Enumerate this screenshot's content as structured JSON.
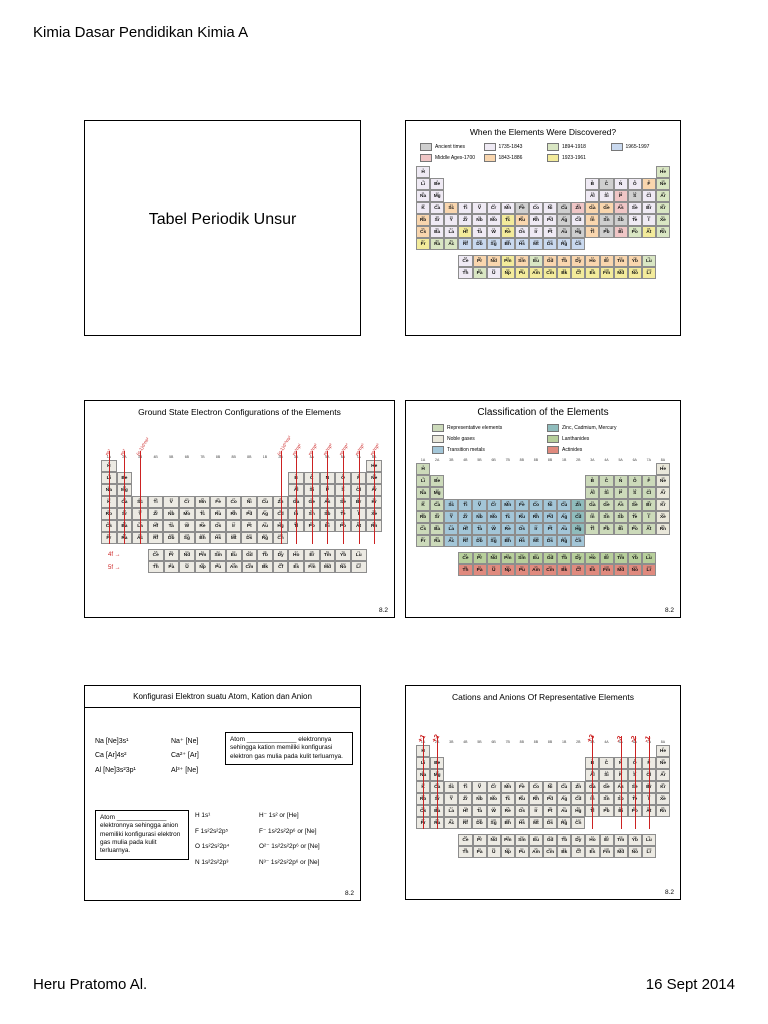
{
  "page": {
    "header": "Kimia Dasar Pendidikan Kimia A",
    "footer_left": "Heru Pratomo Al.",
    "footer_right": "16 Sept 2014",
    "colors": {
      "annotation_red": "#cc2222"
    }
  },
  "slide1": {
    "title": "Tabel Periodik Unsur"
  },
  "slide2": {
    "title": "When the Elements Were Discovered?",
    "legend": [
      {
        "label": "Ancient times",
        "color": "#cfcfcf"
      },
      {
        "label": "1735-1843",
        "color": "#efeaf4"
      },
      {
        "label": "1894-1918",
        "color": "#d9e6c3"
      },
      {
        "label": "1965-1997",
        "color": "#c9d9ef"
      },
      {
        "label": "Middle Ages-1700",
        "color": "#f0c6c6"
      },
      {
        "label": "1843-1886",
        "color": "#f9d6ae"
      },
      {
        "label": "1923-1961",
        "color": "#f3eb9b"
      }
    ]
  },
  "slide3": {
    "title": "Ground State Electron Configurations of the Elements",
    "figure_number": "8.2",
    "f_labels": [
      "4f",
      "5f"
    ],
    "annotations": [
      {
        "col": 1,
        "label": "ns¹"
      },
      {
        "col": 2,
        "label": "ns²"
      },
      {
        "col": 3,
        "label": "(n-1)d¹ns²"
      },
      {
        "col": 12,
        "label": "(n-1)d¹⁰ns²"
      },
      {
        "col": 13,
        "label": "ns²np¹"
      },
      {
        "col": 14,
        "label": "ns²np²"
      },
      {
        "col": 15,
        "label": "ns²np³"
      },
      {
        "col": 16,
        "label": "ns²np⁴"
      },
      {
        "col": 17,
        "label": "ns²np⁵"
      },
      {
        "col": 18,
        "label": "ns²np⁶"
      }
    ]
  },
  "slide4": {
    "title": "Classification of the Elements",
    "figure_number": "8.2",
    "legend": [
      {
        "label": "Representative elements",
        "color": "#ccdaba"
      },
      {
        "label": "Noble gases",
        "color": "#e9e7da"
      },
      {
        "label": "Transition metals",
        "color": "#a3c6d8"
      },
      {
        "label": "Zinc, Cadmium, Mercury",
        "color": "#8fbcbc"
      },
      {
        "label": "Lanthanides",
        "color": "#b7cf9b"
      },
      {
        "label": "Actinides",
        "color": "#e08a7e"
      }
    ]
  },
  "slide5": {
    "title": "Konfigurasi Elektron suatu Atom, Kation dan Anion",
    "figure_number": "8.2",
    "cation_rows": [
      [
        "Na  [Ne]3s¹",
        "Na⁺  [Ne]"
      ],
      [
        "Ca  [Ar]4s²",
        "Ca²⁺  [Ar]"
      ],
      [
        "Al  [Ne]3s²3p¹",
        "Al³⁺  [Ne]"
      ]
    ],
    "cation_note": "Atom ______________ elektronnya sehingga kation memiliki konfigurasi elektron gas mulia pada kulit terluarnya.",
    "anion_note": "Atom ______________ elektronnya sehingga anion memiliki konfigurasi elektron gas mulia pada kulit terluarnya.",
    "anion_rows": [
      [
        "H  1s¹",
        "H⁻  1s² or [He]"
      ],
      [
        "F  1s²2s²2p⁵",
        "F⁻  1s²2s²2p⁶ or [Ne]"
      ],
      [
        "O  1s²2s²2p⁴",
        "O²⁻  1s²2s²2p⁶ or [Ne]"
      ],
      [
        "N  1s²2s²2p³",
        "N³⁻  1s²2s²2p⁶ or [Ne]"
      ]
    ]
  },
  "slide6": {
    "title": "Cations and Anions Of Representative Elements",
    "figure_number": "8.2",
    "annotations": [
      {
        "col": 1,
        "label": "+1"
      },
      {
        "col": 2,
        "label": "+2"
      },
      {
        "col": 13,
        "label": "+3"
      },
      {
        "col": 15,
        "label": "-3"
      },
      {
        "col": 16,
        "label": "-2"
      },
      {
        "col": 17,
        "label": "-1"
      }
    ]
  },
  "periodic_table": {
    "group_headers": [
      "1A",
      "2A",
      "3B",
      "4B",
      "5B",
      "6B",
      "7B",
      "8B",
      "8B",
      "8B",
      "1B",
      "2B",
      "3A",
      "4A",
      "5A",
      "6A",
      "7A",
      "8A"
    ],
    "main": [
      [
        "H",
        "",
        "",
        "",
        "",
        "",
        "",
        "",
        "",
        "",
        "",
        "",
        "",
        "",
        "",
        "",
        "",
        "He"
      ],
      [
        "Li",
        "Be",
        "",
        "",
        "",
        "",
        "",
        "",
        "",
        "",
        "",
        "",
        "B",
        "C",
        "N",
        "O",
        "F",
        "Ne"
      ],
      [
        "Na",
        "Mg",
        "",
        "",
        "",
        "",
        "",
        "",
        "",
        "",
        "",
        "",
        "Al",
        "Si",
        "P",
        "S",
        "Cl",
        "Ar"
      ],
      [
        "K",
        "Ca",
        "Sc",
        "Ti",
        "V",
        "Cr",
        "Mn",
        "Fe",
        "Co",
        "Ni",
        "Cu",
        "Zn",
        "Ga",
        "Ge",
        "As",
        "Se",
        "Br",
        "Kr"
      ],
      [
        "Rb",
        "Sr",
        "Y",
        "Zr",
        "Nb",
        "Mo",
        "Tc",
        "Ru",
        "Rh",
        "Pd",
        "Ag",
        "Cd",
        "In",
        "Sn",
        "Sb",
        "Te",
        "I",
        "Xe"
      ],
      [
        "Cs",
        "Ba",
        "La",
        "Hf",
        "Ta",
        "W",
        "Re",
        "Os",
        "Ir",
        "Pt",
        "Au",
        "Hg",
        "Tl",
        "Pb",
        "Bi",
        "Po",
        "At",
        "Rn"
      ],
      [
        "Fr",
        "Ra",
        "Ac",
        "Rf",
        "Db",
        "Sg",
        "Bh",
        "Hs",
        "Mt",
        "Ds",
        "Rg",
        "Cn",
        "",
        "",
        "",
        "",
        "",
        ""
      ]
    ],
    "lanthanides": [
      "Ce",
      "Pr",
      "Nd",
      "Pm",
      "Sm",
      "Eu",
      "Gd",
      "Tb",
      "Dy",
      "Ho",
      "Er",
      "Tm",
      "Yb",
      "Lu"
    ],
    "actinides": [
      "Th",
      "Pa",
      "U",
      "Np",
      "Pu",
      "Am",
      "Cm",
      "Bk",
      "Cf",
      "Es",
      "Fm",
      "Md",
      "No",
      "Lr"
    ],
    "z_order": [
      "H",
      "He",
      "Li",
      "Be",
      "B",
      "C",
      "N",
      "O",
      "F",
      "Ne",
      "Na",
      "Mg",
      "Al",
      "Si",
      "P",
      "S",
      "Cl",
      "Ar",
      "K",
      "Ca",
      "Sc",
      "Ti",
      "V",
      "Cr",
      "Mn",
      "Fe",
      "Co",
      "Ni",
      "Cu",
      "Zn",
      "Ga",
      "Ge",
      "As",
      "Se",
      "Br",
      "Kr",
      "Rb",
      "Sr",
      "Y",
      "Zr",
      "Nb",
      "Mo",
      "Tc",
      "Ru",
      "Rh",
      "Pd",
      "Ag",
      "Cd",
      "In",
      "Sn",
      "Sb",
      "Te",
      "I",
      "Xe",
      "Cs",
      "Ba",
      "La",
      "Ce",
      "Pr",
      "Nd",
      "Pm",
      "Sm",
      "Eu",
      "Gd",
      "Tb",
      "Dy",
      "Ho",
      "Er",
      "Tm",
      "Yb",
      "Lu",
      "Hf",
      "Ta",
      "W",
      "Re",
      "Os",
      "Ir",
      "Pt",
      "Au",
      "Hg",
      "Tl",
      "Pb",
      "Bi",
      "Po",
      "At",
      "Rn",
      "Fr",
      "Ra",
      "Ac",
      "Th",
      "Pa",
      "U",
      "Np",
      "Pu",
      "Am",
      "Cm",
      "Bk",
      "Cf",
      "Es",
      "Fm",
      "Md",
      "No",
      "Lr",
      "Rf",
      "Db",
      "Sg",
      "Bh",
      "Hs",
      "Mt",
      "Ds",
      "Rg",
      "Cn"
    ],
    "discovery_palette": {
      "a": "#cfcfcf",
      "m": "#f0c6c6",
      "b": "#efeaf4",
      "c": "#f9d6ae",
      "d": "#d9e6c3",
      "e": "#f3eb9b",
      "f": "#c9d9ef"
    },
    "discovery_codes": {
      "main": [
        "b................d",
        "bb..........babbcd",
        "bb..........bbmabd",
        "bbcbbbbabbamccmbbd",
        "cbbbbbecbbabcaabbd",
        "cbbebbebbbaacamded",
        "eddfffffffff......"
      ],
      "lan": "bccecdcccccccd",
      "act": "bdbeeeeeeeeeee"
    },
    "classification_palette": {
      "r": "#ccdaba",
      "n": "#e9e7da",
      "t": "#a3c6d8",
      "z": "#8fbcbc",
      "l": "#b7cf9b",
      "q": "#e08a7e"
    },
    "classification_codes": {
      "main": [
        "r................n",
        "rr..........rrrrrn",
        "rr..........rrrrrn",
        "rrtttttttttzrrrrrn",
        "rrtttttttttzrrrrrn",
        "rrtttttttttzrrrrrn",
        "rrtttttttttt......"
      ],
      "lan": "llllllllllllll",
      "act": "qqqqqqqqqqqqqq"
    }
  }
}
